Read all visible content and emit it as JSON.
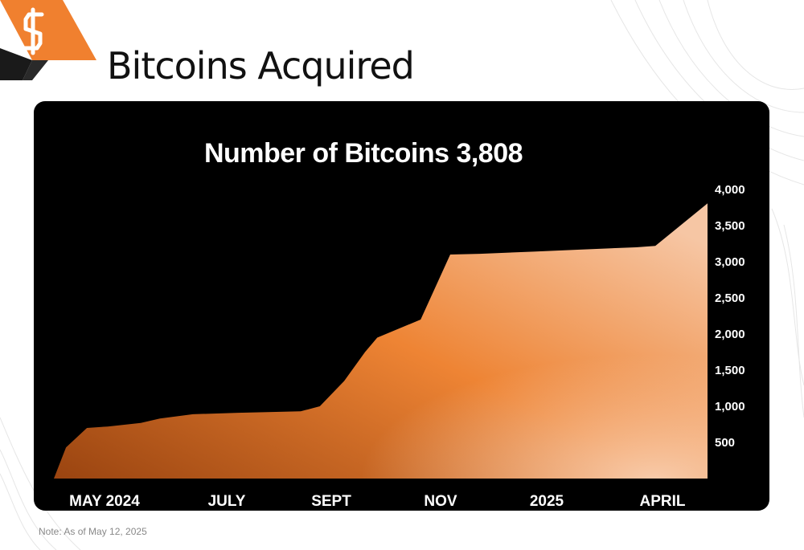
{
  "slide": {
    "title": "Bitcoins Acquired",
    "note": "Note: As of May 12, 2025"
  },
  "brand": {
    "logo_icon": "s-logo-icon",
    "accent_color": "#f0802f",
    "logo_dark_color": "#1a1a1a"
  },
  "chart_data": {
    "type": "area",
    "title": "Number of Bitcoins 3,808",
    "xlabel": "",
    "ylabel": "",
    "ylim": [
      0,
      4000
    ],
    "yticks": [
      500,
      1000,
      1500,
      2000,
      2500,
      3000,
      3500,
      4000
    ],
    "ytick_labels": [
      "500",
      "1,000",
      "1,500",
      "2,000",
      "2,500",
      "3,000",
      "3,500",
      "4,000"
    ],
    "x_tick_labels": [
      "MAY 2024",
      "JULY",
      "SEPT",
      "NOV",
      "2025",
      "APRIL"
    ],
    "x": [
      "2024-05-01",
      "2024-05-08",
      "2024-05-20",
      "2024-06-01",
      "2024-06-20",
      "2024-07-01",
      "2024-07-20",
      "2024-08-15",
      "2024-09-01",
      "2024-09-20",
      "2024-10-01",
      "2024-10-15",
      "2024-10-27",
      "2024-11-03",
      "2024-11-28",
      "2024-12-15",
      "2025-01-01",
      "2025-02-01",
      "2025-03-01",
      "2025-04-01",
      "2025-04-12",
      "2025-05-12"
    ],
    "values": [
      0,
      430,
      700,
      720,
      770,
      830,
      890,
      910,
      920,
      930,
      1000,
      1350,
      1750,
      1950,
      2200,
      3100,
      3110,
      3140,
      3170,
      3200,
      3220,
      3808
    ],
    "fill_colors": [
      "#9a4410",
      "#ee8434",
      "#f6c6a4"
    ],
    "grid": false,
    "legend": "none",
    "yaxis_position": "right"
  }
}
